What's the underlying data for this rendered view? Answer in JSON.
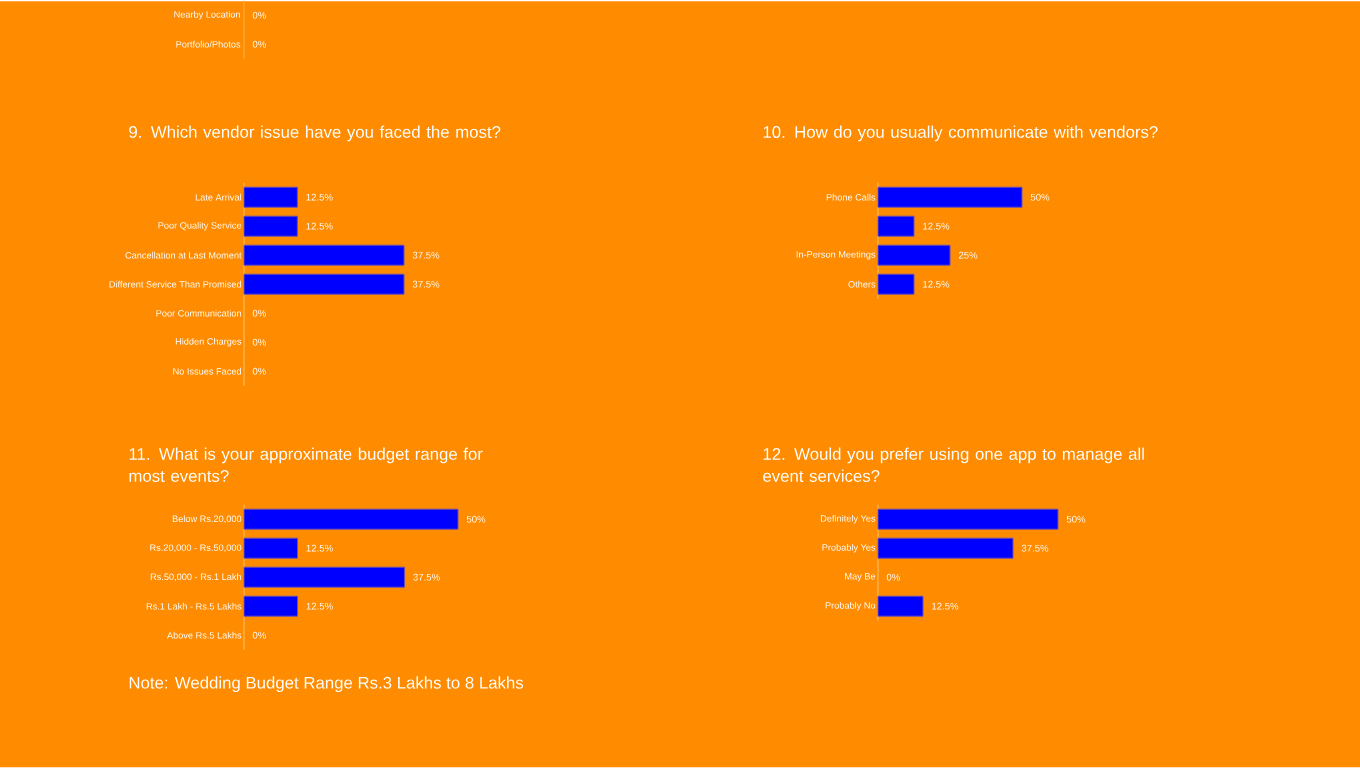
{
  "chart_data": [
    {
      "type": "other",
      "categories": [
        "Nearby Location",
        "Portfolio/Photos"
      ],
      "value_labels": [
        "0%",
        "0%"
      ]
    },
    {
      "type": "bar",
      "orientation": "horizontal",
      "title": "9. Which vendor issue have you faced the most?",
      "categories": [
        "Late Arrival",
        "Poor Quality Service",
        "Cancellation at Last Moment",
        "Different Service Than Promised",
        "Poor Communication",
        "Hidden Charges",
        "No Issues Faced"
      ],
      "values": [
        12.5,
        12.5,
        37.5,
        37.5,
        0,
        0,
        0
      ],
      "value_labels": [
        "12.5%",
        "12.5%",
        "37.5%",
        "37.5%",
        "0%",
        "0%",
        "0%"
      ],
      "color": "#0000ff"
    },
    {
      "type": "bar",
      "orientation": "horizontal",
      "title": "10. How do you usually communicate with vendors?",
      "categories": [
        "Phone Calls",
        null,
        "In-Person Meetings",
        "Others"
      ],
      "values": [
        50,
        12.5,
        25,
        12.5
      ],
      "value_labels": [
        "50%",
        "12.5%",
        "25%",
        "12.5%"
      ],
      "color": "#0000ff"
    },
    {
      "type": "bar",
      "orientation": "horizontal",
      "title": "11. What is your approximate budget range for most events?",
      "categories": [
        "Below Rs.20,000",
        "Rs.20,000 - Rs.50,000",
        "Rs.50,000 - Rs.1 Lakh",
        "Rs.1 Lakh - Rs.5 Lakhs",
        "Above Rs.5 Lakhs"
      ],
      "values": [
        50,
        12.5,
        37.5,
        12.5,
        0
      ],
      "value_labels": [
        "50%",
        "12.5%",
        "37.5%",
        "12.5%",
        "0%"
      ],
      "color": "#0000ff",
      "annotations": [
        "Note: Wedding Budget Range Rs.3 Lakhs to 8 Lakhs"
      ]
    },
    {
      "type": "bar",
      "orientation": "horizontal",
      "title": "12. Would you prefer using one app to manage all event services?",
      "categories": [
        "Definitely Yes",
        "Probably Yes",
        "May Be",
        "Probably No"
      ],
      "values": [
        50,
        37.5,
        0,
        12.5
      ],
      "value_labels": [
        "50%",
        "37.5%",
        "0%",
        "12.5%"
      ],
      "color": "#0000ff"
    }
  ]
}
